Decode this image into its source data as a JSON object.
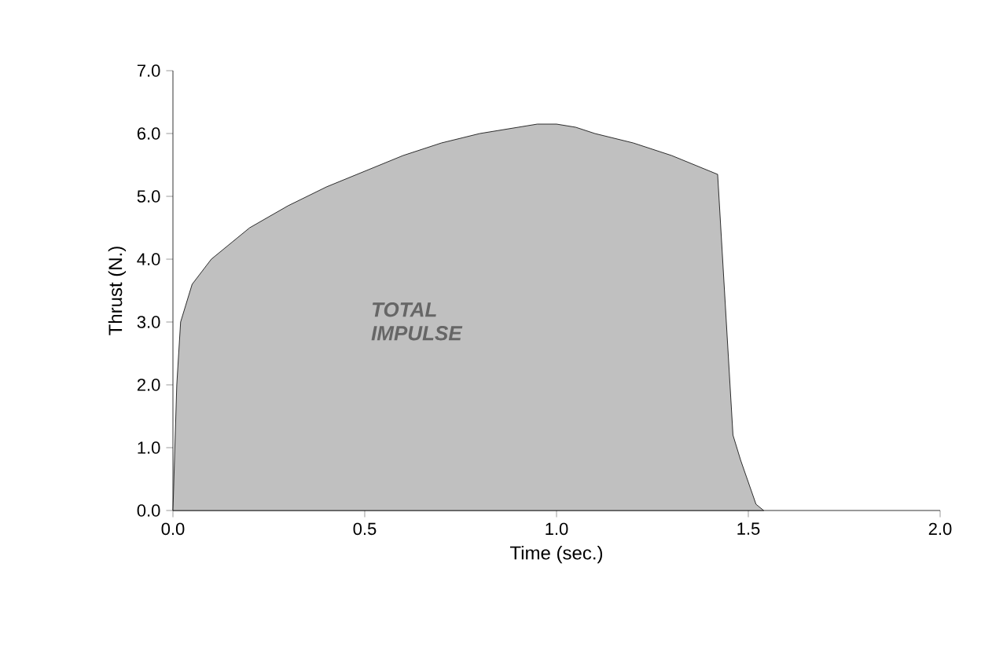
{
  "chart_data": {
    "type": "area",
    "xlabel": "Time  (sec.)",
    "ylabel": "Thrust (N.)",
    "annotations": [
      "TOTAL IMPULSE"
    ],
    "color": "#c0c0c0",
    "grid": false,
    "x": [
      0,
      0.01,
      0.02,
      0.05,
      0.1,
      0.2,
      0.3,
      0.4,
      0.5,
      0.6,
      0.7,
      0.8,
      0.9,
      0.95,
      1.0,
      1.05,
      1.1,
      1.2,
      1.3,
      1.4,
      1.42,
      1.46,
      1.48,
      1.52,
      1.54
    ],
    "values": [
      0,
      2.0,
      3.0,
      3.6,
      4.0,
      4.5,
      4.85,
      5.15,
      5.4,
      5.65,
      5.85,
      6.0,
      6.1,
      6.15,
      6.15,
      6.1,
      6.0,
      5.85,
      5.65,
      5.4,
      5.35,
      1.2,
      0.8,
      0.1,
      0
    ],
    "xlim": [
      0,
      2
    ],
    "ylim": [
      0,
      7
    ],
    "xticks": [
      {
        "value": 0,
        "label": "0.0"
      },
      {
        "value": 0.5,
        "label": "0.5"
      },
      {
        "value": 1,
        "label": "1.0"
      },
      {
        "value": 1.5,
        "label": "1.5"
      },
      {
        "value": 2,
        "label": "2.0"
      }
    ],
    "yticks": [
      {
        "value": 0,
        "label": "0.0"
      },
      {
        "value": 1,
        "label": "1.0"
      },
      {
        "value": 2,
        "label": "2.0"
      },
      {
        "value": 3,
        "label": "3.0"
      },
      {
        "value": 4,
        "label": "4.0"
      },
      {
        "value": 5,
        "label": "5.0"
      },
      {
        "value": 6,
        "label": "6.0"
      },
      {
        "value": 7,
        "label": "7.0"
      }
    ]
  }
}
